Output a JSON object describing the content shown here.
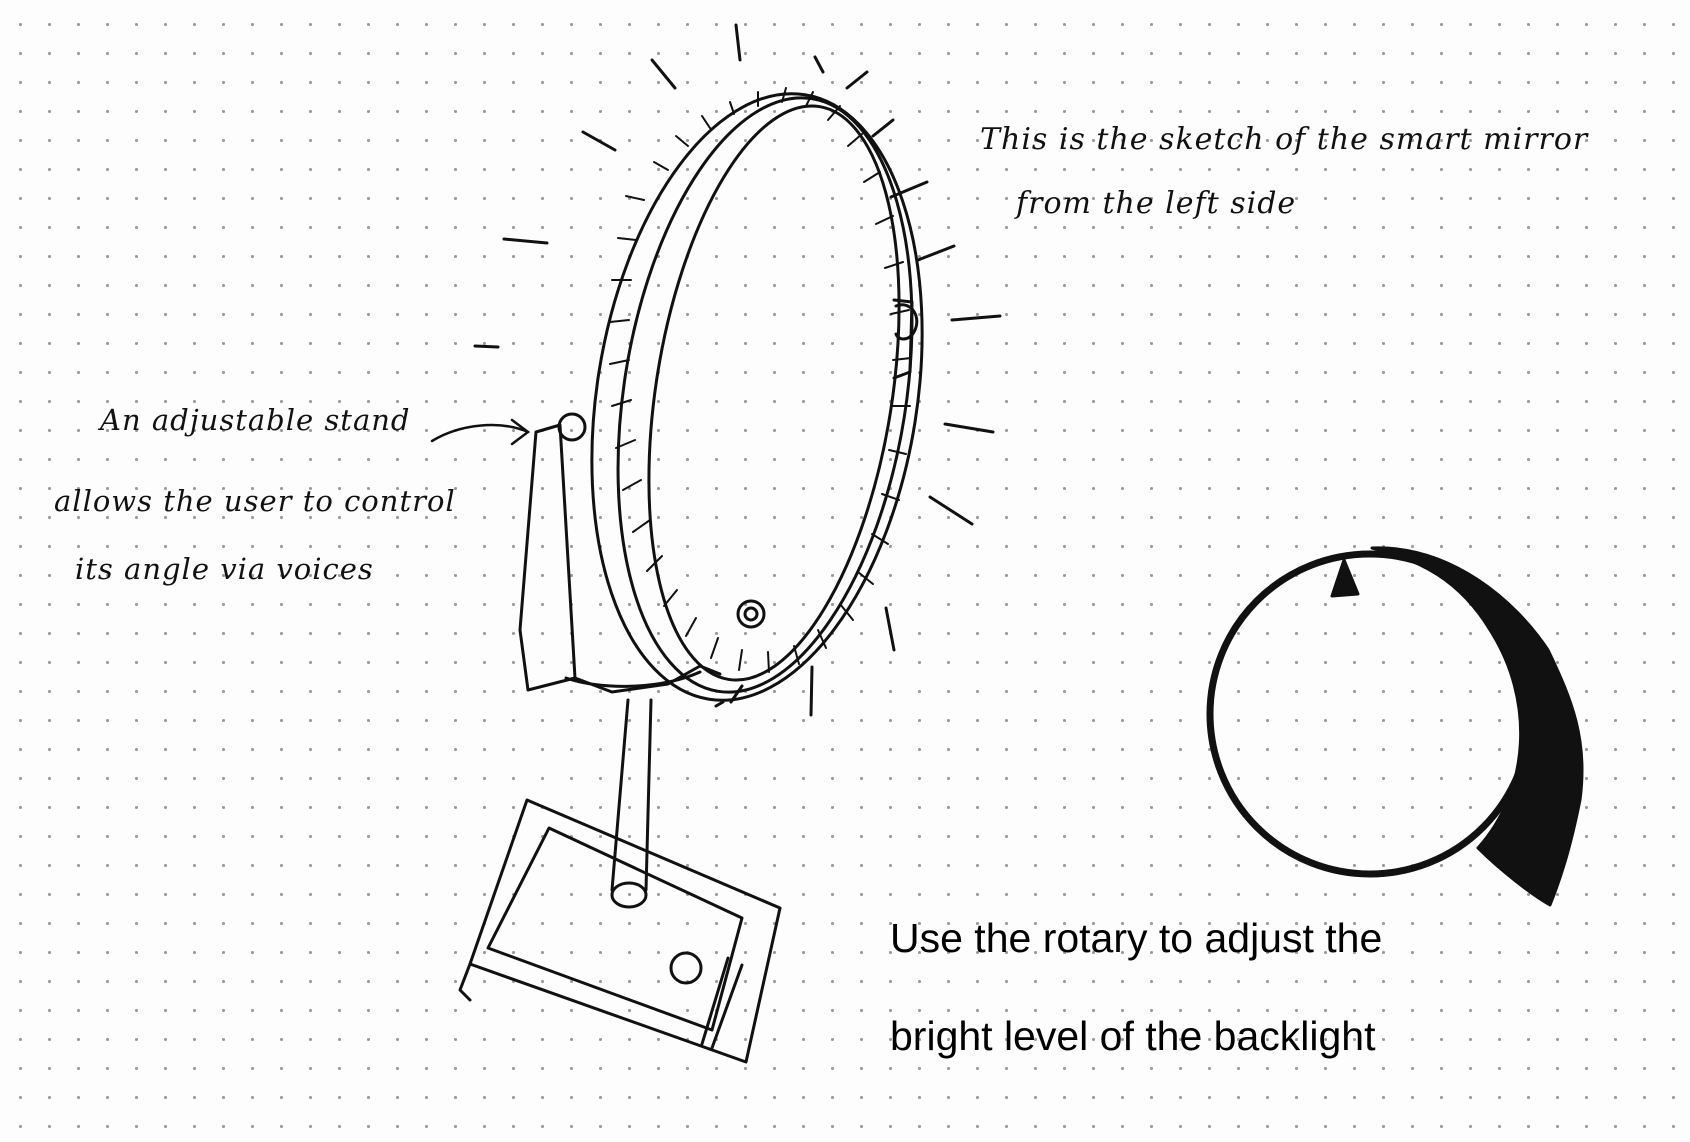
{
  "annotations": {
    "mirror_note": {
      "line1": "This is the sketch of the smart mirror",
      "line2": "from the left side"
    },
    "stand_note": {
      "line1": "An adjustable stand",
      "line2": "allows the user to control",
      "line3": "its angle via voices"
    },
    "rotary_note": {
      "line1": "Use the rotary to adjust the",
      "line2": "bright level of the backlight"
    }
  },
  "drawings": [
    "smart-mirror-sketch",
    "rotary-knob-sketch",
    "light-rays"
  ],
  "colors": {
    "ink": "#111111",
    "paper": "#fdfdfd",
    "dot_grid": "#9a9a9a"
  }
}
